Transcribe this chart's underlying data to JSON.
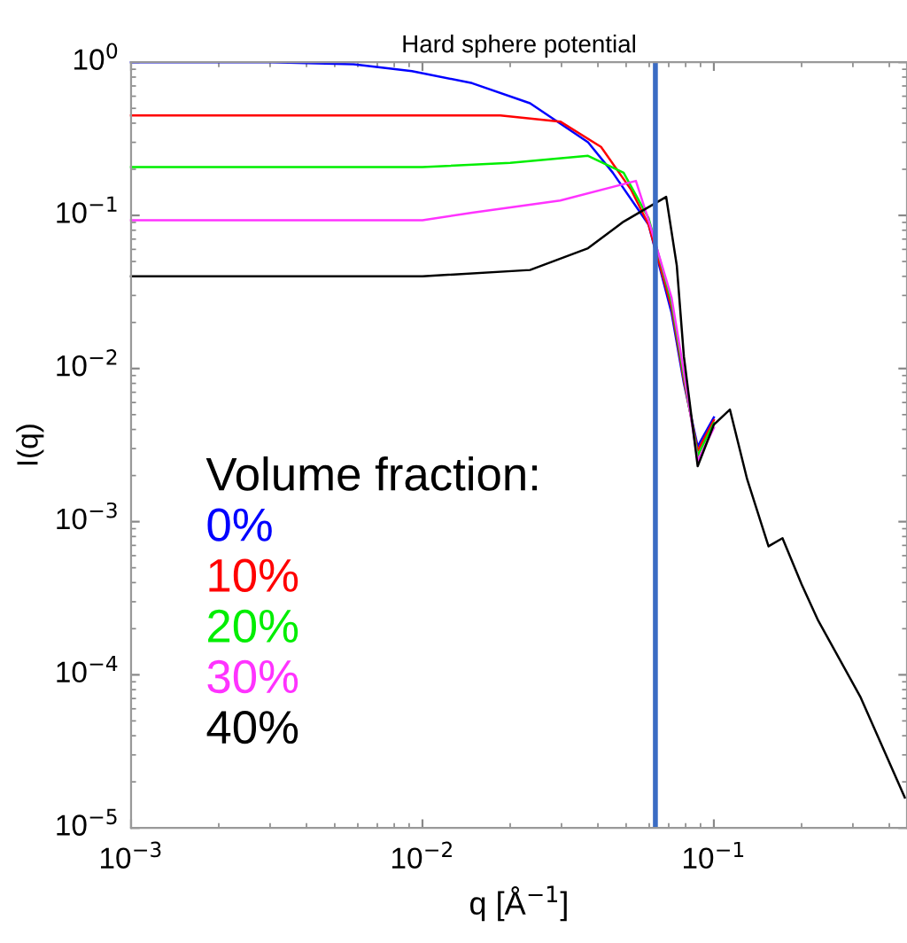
{
  "chart_data": {
    "type": "line",
    "title": "Hard sphere potential",
    "xlabel": "q [Å$^{−1}$]",
    "ylabel": "I(q)",
    "legend_title": "Volume fraction:",
    "log": "xy",
    "grid": false,
    "legend": "lower left",
    "marker": "none",
    "line_style": "solid",
    "xlim": [
      0.001,
      0.46
    ],
    "ylim": [
      1e-05,
      1
    ],
    "xticks": [
      {
        "value": 0.001,
        "label": "10$^{−3}$"
      },
      {
        "value": 0.01,
        "label": "10$^{−2}$"
      },
      {
        "value": 0.1,
        "label": "10$^{−1}$"
      }
    ],
    "yticks": [
      {
        "value": 1e-05,
        "label": "10$^{−5}$"
      },
      {
        "value": 0.0001,
        "label": "10$^{−4}$"
      },
      {
        "value": 0.001,
        "label": "10$^{−3}$"
      },
      {
        "value": 0.01,
        "label": "10$^{−2}$"
      },
      {
        "value": 0.1,
        "label": "10$^{−1}$"
      },
      {
        "value": 1,
        "label": "10$^{0}$"
      }
    ],
    "ref_lines": [
      {
        "axis": "x",
        "value": 0.063,
        "color": "#3b6cc4"
      }
    ],
    "series": [
      {
        "name": "0%",
        "color": "#0000ff",
        "x": [
          0.001,
          0.003,
          0.0058,
          0.0092,
          0.0148,
          0.0234,
          0.037,
          0.045,
          0.0597,
          0.0716,
          0.0789,
          0.088,
          0.1
        ],
        "values": [
          1,
          1,
          0.97,
          0.875,
          0.73,
          0.54,
          0.3,
          0.19,
          0.087,
          0.023,
          0.008,
          0.0031,
          0.0048
        ]
      },
      {
        "name": "10%",
        "color": "#ff0000",
        "x": [
          0.001,
          0.01,
          0.0185,
          0.0297,
          0.041,
          0.052,
          0.0597,
          0.0716,
          0.0789,
          0.088,
          0.1
        ],
        "values": [
          0.45,
          0.45,
          0.45,
          0.41,
          0.28,
          0.147,
          0.087,
          0.025,
          0.0084,
          0.0029,
          0.0046
        ]
      },
      {
        "name": "20%",
        "color": "#00ee00",
        "x": [
          0.001,
          0.01,
          0.02,
          0.037,
          0.049,
          0.0597,
          0.0716,
          0.0789,
          0.088,
          0.1
        ],
        "values": [
          0.207,
          0.207,
          0.22,
          0.245,
          0.19,
          0.096,
          0.027,
          0.0089,
          0.0027,
          0.0044
        ]
      },
      {
        "name": "30%",
        "color": "#ff33ff",
        "x": [
          0.001,
          0.01,
          0.0148,
          0.0297,
          0.054,
          0.059,
          0.0716,
          0.0789,
          0.088,
          0.1
        ],
        "values": [
          0.093,
          0.093,
          0.104,
          0.125,
          0.168,
          0.1,
          0.029,
          0.0095,
          0.0025,
          0.0041
        ]
      },
      {
        "name": "40%",
        "color": "#000000",
        "x": [
          0.001,
          0.01,
          0.0234,
          0.037,
          0.049,
          0.0686,
          0.0746,
          0.0789,
          0.088,
          0.1,
          0.1135,
          0.13,
          0.154,
          0.172,
          0.2,
          0.228,
          0.318,
          0.452
        ],
        "values": [
          0.04,
          0.04,
          0.044,
          0.061,
          0.091,
          0.132,
          0.047,
          0.012,
          0.0023,
          0.0043,
          0.0054,
          0.0019,
          0.00069,
          0.00078,
          0.00039,
          0.000226,
          7.2e-05,
          1.58e-05
        ]
      }
    ]
  }
}
